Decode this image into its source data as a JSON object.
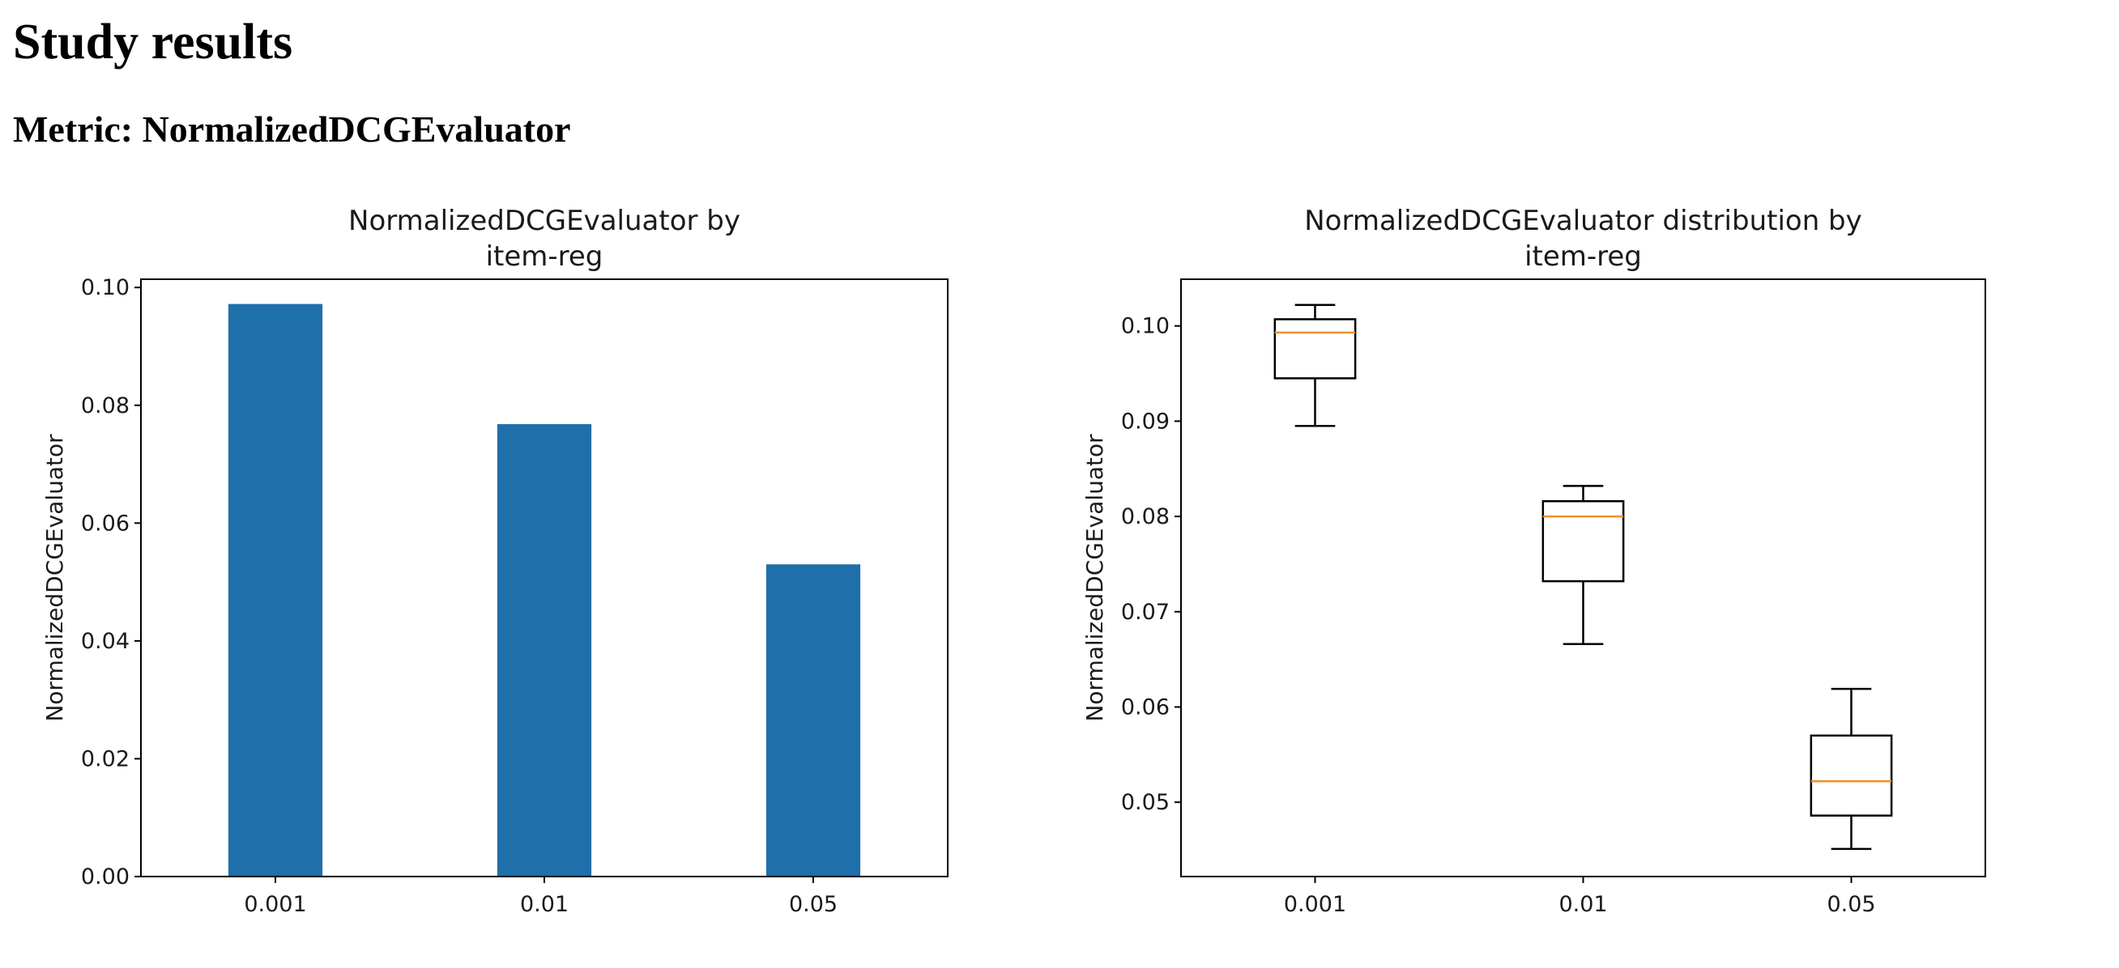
{
  "page": {
    "title": "Study results",
    "metric_heading": "Metric: NormalizedDCGEvaluator"
  },
  "chart_data": [
    {
      "type": "bar",
      "title": [
        "NormalizedDCGEvaluator by",
        "item-reg"
      ],
      "xlabel": "",
      "ylabel": "NormalizedDCGEvaluator",
      "categories": [
        "0.001",
        "0.01",
        "0.05"
      ],
      "values": [
        0.0972,
        0.0768,
        0.053
      ],
      "ylim": [
        0,
        0.1014
      ],
      "yticks": [
        "0.00",
        "0.02",
        "0.04",
        "0.06",
        "0.08",
        "0.10"
      ],
      "bar_color": "#1f6fab",
      "grid": false
    },
    {
      "type": "box",
      "title": [
        "NormalizedDCGEvaluator distribution by",
        "item-reg"
      ],
      "xlabel": "",
      "ylabel": "NormalizedDCGEvaluator",
      "categories": [
        "0.001",
        "0.01",
        "0.05"
      ],
      "boxes": [
        {
          "whisker_low": 0.0895,
          "q1": 0.0945,
          "median": 0.0993,
          "q3": 0.1007,
          "whisker_high": 0.1022
        },
        {
          "whisker_low": 0.0666,
          "q1": 0.0732,
          "median": 0.08,
          "q3": 0.0816,
          "whisker_high": 0.0832
        },
        {
          "whisker_low": 0.0451,
          "q1": 0.0486,
          "median": 0.0522,
          "q3": 0.057,
          "whisker_high": 0.0619
        }
      ],
      "ylim": [
        0.0422,
        0.1049
      ],
      "yticks": [
        "0.05",
        "0.06",
        "0.07",
        "0.08",
        "0.09",
        "0.10"
      ],
      "median_color": "#f28e2b",
      "grid": false
    }
  ]
}
